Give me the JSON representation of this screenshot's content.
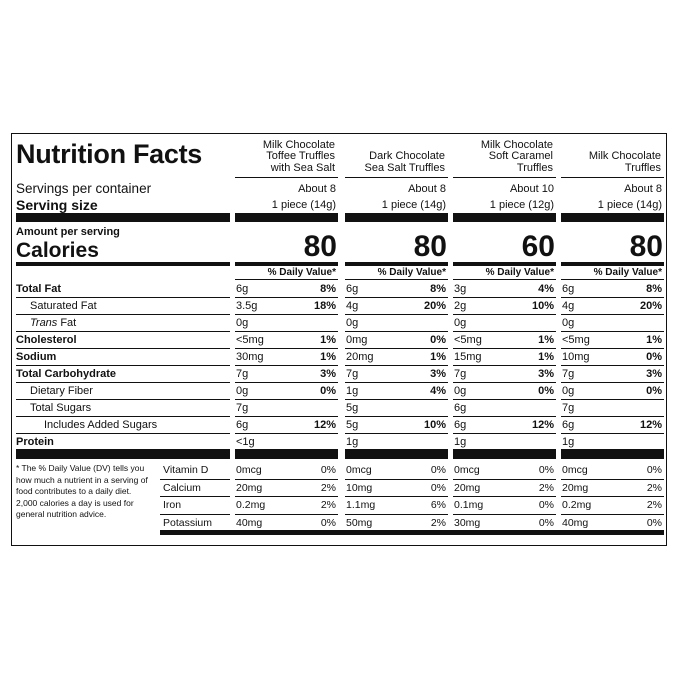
{
  "title": "Nutrition Facts",
  "servings_label": "Servings per container",
  "serving_size_label": "Serving size",
  "amount_label": "Amount per serving",
  "calories_label": "Calories",
  "dv_label": "% Daily Value*",
  "nutrients": [
    {
      "label": "Total Fat",
      "bold": true,
      "indent": 0
    },
    {
      "label": "Saturated Fat",
      "bold": false,
      "indent": 1
    },
    {
      "italic": "Trans",
      "label": "Fat",
      "bold": false,
      "indent": 1
    },
    {
      "label": "Cholesterol",
      "bold": true,
      "indent": 0
    },
    {
      "label": "Sodium",
      "bold": true,
      "indent": 0
    },
    {
      "label": "Total Carbohydrate",
      "bold": true,
      "indent": 0
    },
    {
      "label": "Dietary Fiber",
      "bold": false,
      "indent": 1
    },
    {
      "label": "Total Sugars",
      "bold": false,
      "indent": 1
    },
    {
      "label": "Includes Added Sugars",
      "bold": false,
      "indent": 2
    },
    {
      "label": "Protein",
      "bold": true,
      "indent": 0
    }
  ],
  "vitamins": [
    "Vitamin D",
    "Calcium",
    "Iron",
    "Potassium"
  ],
  "footnote": "* The % Daily Value (DV) tells you how much a nutrient in a serving of food contributes to a daily diet. 2,000 calories a day is used for general nutrition advice.",
  "products": [
    {
      "name": [
        "Milk Chocolate",
        "Toffee Truffles",
        "with Sea Salt"
      ],
      "servings": "About 8",
      "serving_size": "1 piece (14g)",
      "calories": 80,
      "nutrients": [
        [
          "6g",
          "8%"
        ],
        [
          "3.5g",
          "18%"
        ],
        [
          "0g"
        ],
        [
          "<5mg",
          "1%"
        ],
        [
          "30mg",
          "1%"
        ],
        [
          "7g",
          "3%"
        ],
        [
          "0g",
          "0%"
        ],
        [
          "7g"
        ],
        [
          "6g",
          "12%"
        ],
        [
          "<1g"
        ]
      ],
      "vitamins": [
        [
          "0mcg",
          "0%"
        ],
        [
          "20mg",
          "2%"
        ],
        [
          "0.2mg",
          "2%"
        ],
        [
          "40mg",
          "0%"
        ]
      ]
    },
    {
      "name": [
        "Dark Chocolate",
        "Sea Salt Truffles"
      ],
      "servings": "About 8",
      "serving_size": "1 piece (14g)",
      "calories": 80,
      "nutrients": [
        [
          "6g",
          "8%"
        ],
        [
          "4g",
          "20%"
        ],
        [
          "0g"
        ],
        [
          "0mg",
          "0%"
        ],
        [
          "20mg",
          "1%"
        ],
        [
          "7g",
          "3%"
        ],
        [
          "1g",
          "4%"
        ],
        [
          "5g"
        ],
        [
          "5g",
          "10%"
        ],
        [
          "1g"
        ]
      ],
      "vitamins": [
        [
          "0mcg",
          "0%"
        ],
        [
          "10mg",
          "0%"
        ],
        [
          "1.1mg",
          "6%"
        ],
        [
          "50mg",
          "2%"
        ]
      ]
    },
    {
      "name": [
        "Milk Chocolate",
        "Soft Caramel",
        "Truffles"
      ],
      "servings": "About 10",
      "serving_size": "1 piece (12g)",
      "calories": 60,
      "nutrients": [
        [
          "3g",
          "4%"
        ],
        [
          "2g",
          "10%"
        ],
        [
          "0g"
        ],
        [
          "<5mg",
          "1%"
        ],
        [
          "15mg",
          "1%"
        ],
        [
          "7g",
          "3%"
        ],
        [
          "0g",
          "0%"
        ],
        [
          "6g"
        ],
        [
          "6g",
          "12%"
        ],
        [
          "1g"
        ]
      ],
      "vitamins": [
        [
          "0mcg",
          "0%"
        ],
        [
          "20mg",
          "2%"
        ],
        [
          "0.1mg",
          "0%"
        ],
        [
          "30mg",
          "0%"
        ]
      ]
    },
    {
      "name": [
        "Milk Chocolate",
        "Truffles"
      ],
      "servings": "About 8",
      "serving_size": "1 piece (14g)",
      "calories": 80,
      "nutrients": [
        [
          "6g",
          "8%"
        ],
        [
          "4g",
          "20%"
        ],
        [
          "0g"
        ],
        [
          "<5mg",
          "1%"
        ],
        [
          "10mg",
          "0%"
        ],
        [
          "7g",
          "3%"
        ],
        [
          "0g",
          "0%"
        ],
        [
          "7g"
        ],
        [
          "6g",
          "12%"
        ],
        [
          "1g"
        ]
      ],
      "vitamins": [
        [
          "0mcg",
          "0%"
        ],
        [
          "20mg",
          "2%"
        ],
        [
          "0.2mg",
          "2%"
        ],
        [
          "40mg",
          "0%"
        ]
      ]
    }
  ]
}
